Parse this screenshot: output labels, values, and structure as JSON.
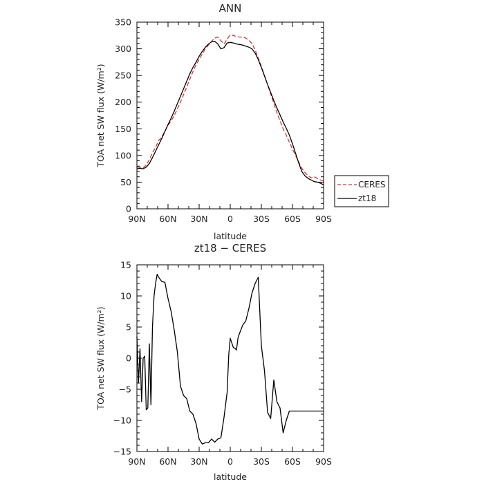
{
  "chart_data": [
    {
      "type": "line",
      "title": "ANN",
      "xlabel": "latitude",
      "ylabel": "TOA net SW flux (W/m²)",
      "x_range": [
        90,
        -90
      ],
      "ylim": [
        0,
        350
      ],
      "x_tick_labels": [
        "90N",
        "60N",
        "30N",
        "0",
        "30S",
        "60S",
        "90S"
      ],
      "y_tick_labels": [
        "0",
        "50",
        "100",
        "150",
        "200",
        "250",
        "300",
        "350"
      ],
      "legend": "right",
      "series": [
        {
          "name": "CERES",
          "color": "#e03030",
          "dash": true,
          "x": [
            90,
            87,
            84,
            81,
            78,
            75,
            72,
            69,
            66,
            63,
            60,
            57,
            54,
            51,
            48,
            45,
            42,
            39,
            36,
            33,
            30,
            27,
            24,
            21,
            18,
            15,
            12,
            9,
            6,
            3,
            0,
            -3,
            -6,
            -9,
            -12,
            -15,
            -18,
            -21,
            -24,
            -27,
            -30,
            -33,
            -36,
            -39,
            -42,
            -45,
            -48,
            -51,
            -54,
            -57,
            -60,
            -63,
            -66,
            -69,
            -72,
            -75,
            -78,
            -81,
            -84,
            -87,
            -90
          ],
          "y": [
            78,
            78,
            77,
            82,
            92,
            105,
            115,
            128,
            135,
            146,
            156,
            165,
            175,
            187,
            200,
            214,
            228,
            243,
            257,
            270,
            280,
            290,
            300,
            307,
            314,
            320,
            322,
            315,
            309,
            318,
            326,
            325,
            323,
            322,
            322,
            320,
            316,
            310,
            298,
            283,
            267,
            250,
            233,
            215,
            198,
            180,
            165,
            150,
            138,
            125,
            112,
            100,
            88,
            76,
            68,
            62,
            58,
            60,
            57,
            54,
            52
          ]
        },
        {
          "name": "zt18",
          "color": "#000000",
          "dash": false,
          "x": [
            90,
            87,
            84,
            81,
            78,
            75,
            72,
            69,
            66,
            63,
            60,
            57,
            54,
            51,
            48,
            45,
            42,
            39,
            36,
            33,
            30,
            27,
            24,
            21,
            18,
            15,
            12,
            9,
            6,
            3,
            0,
            -3,
            -6,
            -9,
            -12,
            -15,
            -18,
            -21,
            -24,
            -27,
            -30,
            -33,
            -36,
            -39,
            -42,
            -45,
            -48,
            -51,
            -54,
            -57,
            -60,
            -63,
            -66,
            -69,
            -72,
            -75,
            -78,
            -81,
            -84,
            -87,
            -90
          ],
          "y": [
            75,
            76,
            75,
            78,
            85,
            96,
            108,
            120,
            132,
            145,
            158,
            170,
            183,
            197,
            211,
            225,
            239,
            253,
            265,
            275,
            286,
            295,
            303,
            309,
            313,
            314,
            309,
            300,
            302,
            311,
            312,
            311,
            309,
            308,
            307,
            305,
            303,
            300,
            292,
            280,
            265,
            249,
            233,
            218,
            203,
            189,
            176,
            163,
            151,
            138,
            122,
            104,
            86,
            70,
            62,
            57,
            54,
            51,
            50,
            48,
            45
          ]
        }
      ]
    },
    {
      "type": "line",
      "title": "zt18 − CERES",
      "xlabel": "latitude",
      "ylabel": "TOA net SW flux (W/m²)",
      "x_range": [
        90,
        -90
      ],
      "ylim": [
        -15,
        15
      ],
      "x_tick_labels": [
        "90N",
        "60N",
        "30N",
        "0",
        "30S",
        "60S",
        "90S"
      ],
      "y_tick_labels": [
        "−15",
        "−10",
        "−5",
        "0",
        "5",
        "10",
        "15"
      ],
      "series": [
        {
          "name": "",
          "color": "#000000",
          "dash": false,
          "x": [
            90,
            88.5,
            87,
            85.5,
            84,
            82.5,
            81,
            79.5,
            78,
            76.5,
            75,
            73.5,
            72,
            70.5,
            69,
            66,
            63,
            60,
            57,
            54,
            51,
            48,
            45,
            42,
            39,
            36,
            33,
            30,
            27,
            24,
            21,
            18,
            15,
            12,
            9,
            6,
            3,
            1.5,
            0,
            -3,
            -4.5,
            -6,
            -7.5,
            -9,
            -12,
            -15,
            -18,
            -21,
            -24,
            -27,
            -30,
            -33,
            -36,
            -39,
            -42,
            -45,
            -48,
            -51,
            -54,
            -57,
            -60,
            -63,
            -64.5,
            -66,
            -69,
            -72,
            -73.5,
            -75,
            -76.5,
            -78,
            -79.5,
            -81,
            -84,
            -87,
            -90
          ],
          "y": [
            3.5,
            -4.0,
            1.5,
            -7.0,
            0.0,
            0.3,
            -8.3,
            -8.0,
            2.3,
            -7.5,
            5.0,
            10.0,
            12.0,
            13.5,
            13.0,
            12.3,
            12.2,
            9.6,
            7.5,
            4.5,
            1.0,
            -4.5,
            -6.0,
            -6.5,
            -8.5,
            -9.0,
            -10.5,
            -13.0,
            -13.8,
            -13.6,
            -13.6,
            -13.0,
            -13.5,
            -13.0,
            -12.8,
            -9.5,
            -5.5,
            0.5,
            3.2,
            1.7,
            1.6,
            1.3,
            3.3,
            4.0,
            5.3,
            6.0,
            8.0,
            10.5,
            12.0,
            13.0,
            2.0,
            -2.0,
            -8.7,
            -9.7,
            -3.5,
            -7.0,
            -8.0,
            -12.0,
            -10.0,
            -8.5,
            -8.5,
            -8.5,
            -8.5,
            -8.5,
            -8.5,
            -8.5,
            -8.5,
            -8.5,
            -8.5,
            -8.5,
            -8.5,
            -8.5,
            -8.5,
            -8.5,
            -8.5
          ]
        }
      ]
    }
  ]
}
